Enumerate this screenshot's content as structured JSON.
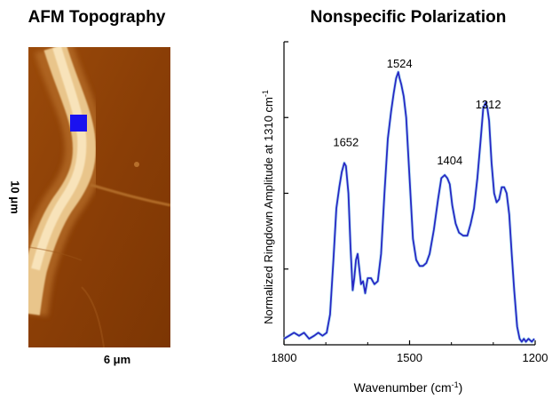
{
  "left_panel": {
    "title": "AFM Topography",
    "y_scale_label": "10 μm",
    "x_scale_label": "6 μm",
    "colors": {
      "background": "#8a3e06",
      "fiber": "#f0d29c",
      "marker": "#1a12f0"
    }
  },
  "right_panel": {
    "title": "Nonspecific Polarization"
  },
  "chart_data": {
    "type": "line",
    "title": "Nonspecific Polarization",
    "xlabel_base": "Wavenumber (cm",
    "xlabel_sup": "-1",
    "xlabel_tail": ")",
    "ylabel_base": "Normalized Ringdown Amplitude at 1310 cm",
    "ylabel_sup": "-1",
    "xlim": [
      1800,
      1200
    ],
    "ylim": [
      0,
      1
    ],
    "xticks": [
      1800,
      1500,
      1200
    ],
    "yticks": [
      0.25,
      0.5,
      0.75,
      1.0
    ],
    "line_color": "#2727c4",
    "peak_labels": [
      {
        "label": "1652",
        "x": 1652,
        "y": 0.655
      },
      {
        "label": "1524",
        "x": 1524,
        "y": 0.915
      },
      {
        "label": "1404",
        "x": 1404,
        "y": 0.595
      },
      {
        "label": "1312",
        "x": 1312,
        "y": 0.78
      }
    ],
    "series": [
      {
        "x": [
          1800,
          1788,
          1776,
          1764,
          1752,
          1740,
          1728,
          1718,
          1708,
          1698,
          1690,
          1682,
          1675,
          1668,
          1662,
          1656,
          1652,
          1646,
          1641,
          1636,
          1632,
          1628,
          1624,
          1620,
          1616,
          1611,
          1606,
          1600,
          1592,
          1584,
          1576,
          1568,
          1560,
          1552,
          1544,
          1538,
          1532,
          1527,
          1524,
          1520,
          1514,
          1508,
          1500,
          1492,
          1484,
          1476,
          1468,
          1460,
          1452,
          1442,
          1432,
          1424,
          1416,
          1410,
          1404,
          1398,
          1390,
          1382,
          1372,
          1362,
          1354,
          1346,
          1338,
          1330,
          1324,
          1318,
          1314,
          1310,
          1304,
          1298,
          1292,
          1286,
          1280,
          1274,
          1268,
          1262,
          1256,
          1250,
          1243,
          1237,
          1232,
          1227,
          1222,
          1216,
          1208,
          1202
        ],
        "y": [
          0.02,
          0.03,
          0.04,
          0.03,
          0.04,
          0.02,
          0.03,
          0.04,
          0.03,
          0.04,
          0.1,
          0.28,
          0.45,
          0.52,
          0.57,
          0.6,
          0.59,
          0.5,
          0.32,
          0.18,
          0.22,
          0.28,
          0.3,
          0.25,
          0.2,
          0.21,
          0.17,
          0.22,
          0.22,
          0.2,
          0.21,
          0.3,
          0.5,
          0.68,
          0.77,
          0.83,
          0.88,
          0.9,
          0.88,
          0.86,
          0.82,
          0.75,
          0.55,
          0.35,
          0.28,
          0.26,
          0.26,
          0.27,
          0.3,
          0.38,
          0.48,
          0.55,
          0.56,
          0.55,
          0.53,
          0.46,
          0.4,
          0.37,
          0.36,
          0.36,
          0.4,
          0.45,
          0.55,
          0.68,
          0.78,
          0.8,
          0.78,
          0.74,
          0.6,
          0.5,
          0.47,
          0.48,
          0.52,
          0.52,
          0.5,
          0.43,
          0.3,
          0.18,
          0.06,
          0.02,
          0.01,
          0.02,
          0.01,
          0.02,
          0.01,
          0.02
        ]
      }
    ]
  }
}
